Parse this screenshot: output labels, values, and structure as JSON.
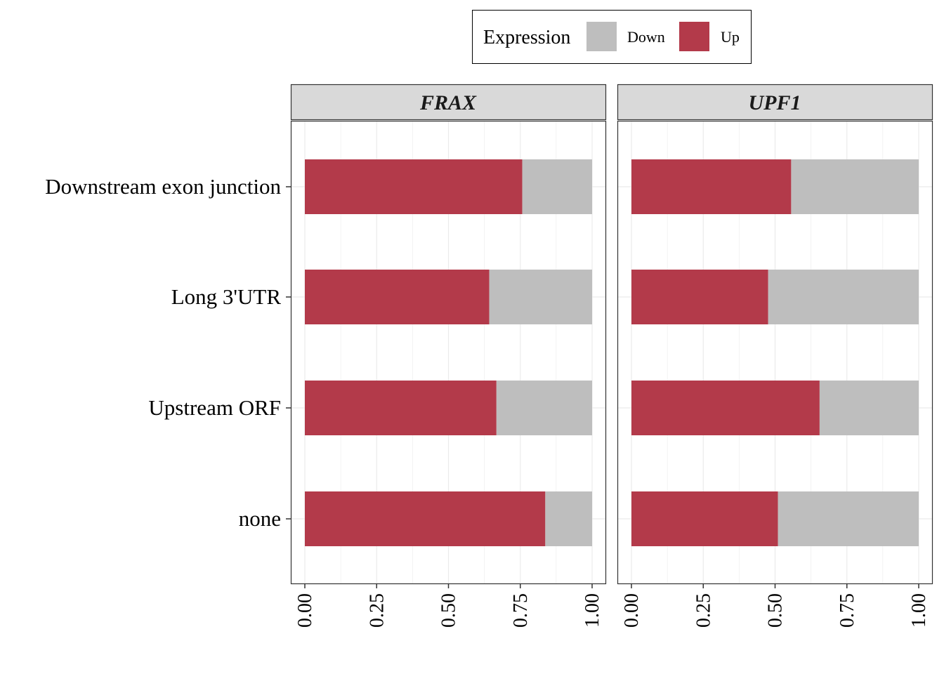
{
  "legend": {
    "title": "Expression",
    "placement": "top",
    "items": [
      {
        "label": "Down",
        "color": "#bebebe"
      },
      {
        "label": "Up",
        "color": "#b33a4a"
      }
    ]
  },
  "chart_data": {
    "type": "bar",
    "stacked": true,
    "orientation": "horizontal",
    "categories": [
      "Downstream exon junction",
      "Long 3'UTR",
      "Upstream ORF",
      "none"
    ],
    "xlim": [
      0,
      1
    ],
    "x_ticks": [
      "0.00",
      "0.25",
      "0.50",
      "0.75",
      "1.00"
    ],
    "grid": true,
    "colors": {
      "Up": "#b33a4a",
      "Down": "#bebebe"
    },
    "panels": [
      {
        "title": "FRAX",
        "series": [
          {
            "name": "Up",
            "values": [
              0.757,
              0.642,
              0.667,
              0.837
            ]
          },
          {
            "name": "Down",
            "values": [
              0.243,
              0.358,
              0.333,
              0.163
            ]
          }
        ]
      },
      {
        "title": "UPF1",
        "series": [
          {
            "name": "Up",
            "values": [
              0.556,
              0.476,
              0.655,
              0.51
            ]
          },
          {
            "name": "Down",
            "values": [
              0.444,
              0.524,
              0.345,
              0.49
            ]
          }
        ]
      }
    ]
  }
}
